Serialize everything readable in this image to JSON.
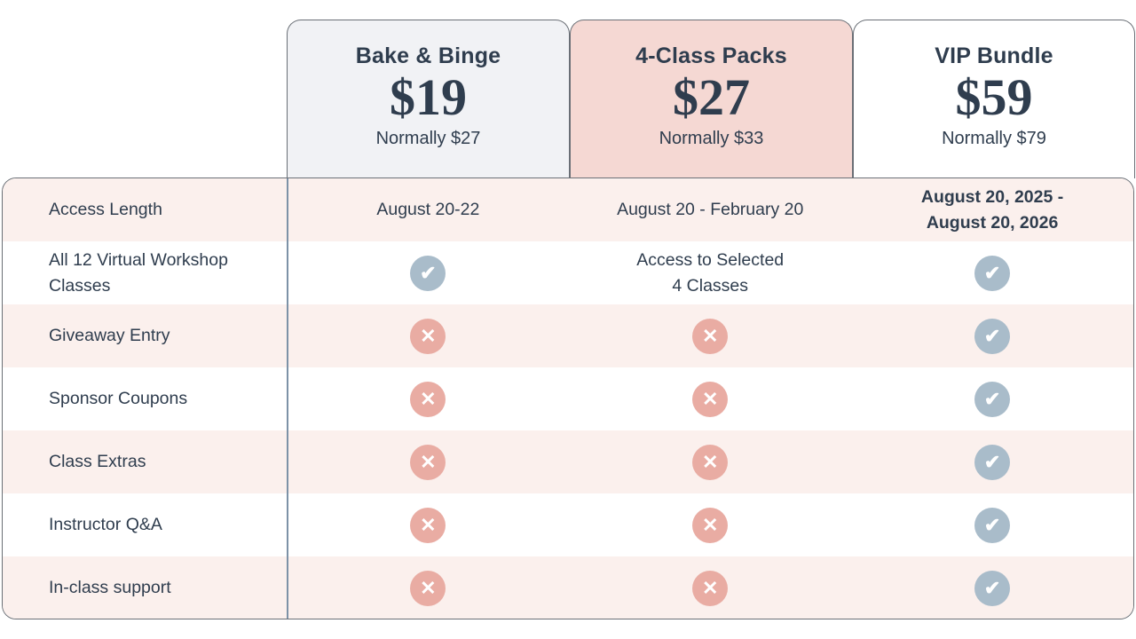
{
  "colors": {
    "navy": "#2f3d4e",
    "border": "#6a6f76",
    "divider": "#7d92a7",
    "card-gray-bg": "#f1f2f5",
    "card-pink-bg": "#f5d8d3",
    "card-white-bg": "#ffffff",
    "row-pink": "#fbf0ed",
    "check-circle": "#a9bcca",
    "cross-circle": "#e9aca3"
  },
  "plans": [
    {
      "name": "Bake & Binge",
      "price": "$19",
      "normally": "Normally $27"
    },
    {
      "name": "4-Class Packs",
      "price": "$27",
      "normally": "Normally $33"
    },
    {
      "name": "VIP Bundle",
      "price": "$59",
      "normally": "Normally $79"
    }
  ],
  "table": {
    "rows": [
      {
        "label": "Access Length",
        "cells": [
          "August 20-22",
          "August 20 - February 20",
          "August 20, 2025 -\nAugust 20, 2026"
        ]
      },
      {
        "label": "All 12 Virtual Workshop\nClasses",
        "cells": [
          "check",
          "Access to Selected\n4 Classes",
          "check"
        ]
      },
      {
        "label": "Giveaway Entry",
        "cells": [
          "cross",
          "cross",
          "check"
        ]
      },
      {
        "label": "Sponsor Coupons",
        "cells": [
          "cross",
          "cross",
          "check"
        ]
      },
      {
        "label": "Class Extras",
        "cells": [
          "cross",
          "cross",
          "check"
        ]
      },
      {
        "label": "Instructor Q&A",
        "cells": [
          "cross",
          "cross",
          "check"
        ]
      },
      {
        "label": "In-class support",
        "cells": [
          "cross",
          "cross",
          "check"
        ]
      }
    ]
  }
}
